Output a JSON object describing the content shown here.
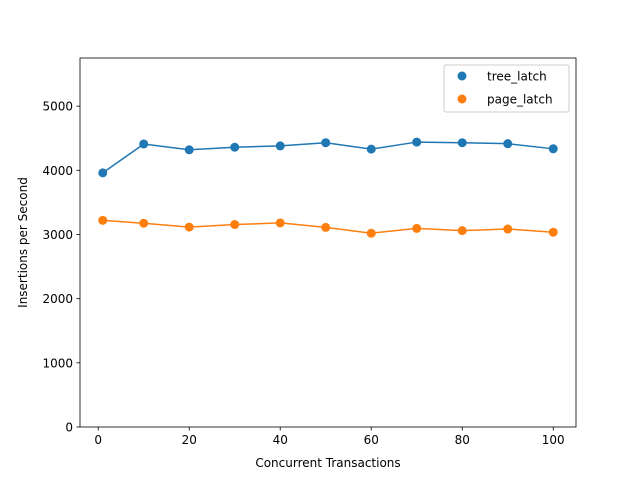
{
  "chart_data": {
    "type": "line",
    "title": "",
    "xlabel": "Concurrent Transactions",
    "ylabel": "Insertions per Second",
    "xlim": [
      -4,
      105
    ],
    "ylim": [
      0,
      5750
    ],
    "xticks": [
      0,
      20,
      40,
      60,
      80,
      100
    ],
    "yticks": [
      0,
      1000,
      2000,
      3000,
      4000,
      5000
    ],
    "grid": false,
    "legend_position": "top-right",
    "x": [
      1,
      10,
      20,
      30,
      40,
      50,
      60,
      70,
      80,
      90,
      100
    ],
    "series": [
      {
        "name": "tree_latch",
        "color": "#1f77b4",
        "values": [
          3960,
          4410,
          4320,
          4360,
          4380,
          4430,
          4330,
          4440,
          4430,
          4415,
          4335
        ]
      },
      {
        "name": "page_latch",
        "color": "#ff7f0e",
        "values": [
          3220,
          3175,
          3115,
          3155,
          3180,
          3110,
          3020,
          3095,
          3060,
          3085,
          3035
        ]
      }
    ]
  }
}
